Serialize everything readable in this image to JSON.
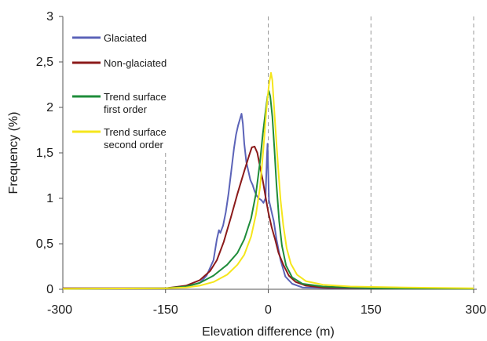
{
  "chart_data": {
    "type": "line",
    "title": "",
    "xlabel": "Elevation difference (m)",
    "ylabel": "Frequency (%)",
    "xlim": [
      -300,
      300
    ],
    "ylim": [
      0,
      3
    ],
    "x_ticks": [
      -300,
      -150,
      0,
      150,
      300
    ],
    "x_tick_labels": [
      "-300",
      "-150",
      "0",
      "150",
      "300"
    ],
    "y_ticks": [
      0,
      0.5,
      1,
      1.5,
      2,
      2.5,
      3
    ],
    "y_tick_labels": [
      "0",
      "0,5",
      "1",
      "1,5",
      "2",
      "2,5",
      "3"
    ],
    "vertical_reference_lines_at": [
      -150,
      0,
      150,
      300
    ],
    "grid": false,
    "legend_position": "top-left",
    "legend_lines": [
      [
        "Glaciated"
      ],
      [
        "Non-glaciated"
      ],
      [
        "Trend surface",
        "first order"
      ],
      [
        "Trend surface",
        "second order"
      ]
    ],
    "series": [
      {
        "name": "Glaciated",
        "color": "#5b63b8",
        "points": [
          [
            -300,
            0.01
          ],
          [
            -200,
            0.01
          ],
          [
            -150,
            0.01
          ],
          [
            -120,
            0.03
          ],
          [
            -100,
            0.07
          ],
          [
            -90,
            0.15
          ],
          [
            -80,
            0.32
          ],
          [
            -75,
            0.55
          ],
          [
            -72,
            0.65
          ],
          [
            -70,
            0.62
          ],
          [
            -66,
            0.7
          ],
          [
            -62,
            0.85
          ],
          [
            -58,
            1.05
          ],
          [
            -54,
            1.3
          ],
          [
            -50,
            1.55
          ],
          [
            -47,
            1.7
          ],
          [
            -44,
            1.8
          ],
          [
            -41,
            1.88
          ],
          [
            -39,
            1.93
          ],
          [
            -37,
            1.82
          ],
          [
            -35,
            1.6
          ],
          [
            -32,
            1.4
          ],
          [
            -29,
            1.3
          ],
          [
            -26,
            1.2
          ],
          [
            -23,
            1.15
          ],
          [
            -20,
            1.08
          ],
          [
            -17,
            1.03
          ],
          [
            -14,
            1.0
          ],
          [
            -10,
            0.98
          ],
          [
            -7,
            0.95
          ],
          [
            -4,
            1.0
          ],
          [
            -2,
            1.45
          ],
          [
            -1,
            1.6
          ],
          [
            1,
            0.98
          ],
          [
            4,
            0.88
          ],
          [
            8,
            0.75
          ],
          [
            12,
            0.55
          ],
          [
            18,
            0.32
          ],
          [
            25,
            0.14
          ],
          [
            35,
            0.06
          ],
          [
            50,
            0.02
          ],
          [
            100,
            0.01
          ],
          [
            300,
            0.005
          ]
        ]
      },
      {
        "name": "Non-glaciated",
        "color": "#8b1a1a",
        "points": [
          [
            -300,
            0.01
          ],
          [
            -150,
            0.01
          ],
          [
            -120,
            0.04
          ],
          [
            -100,
            0.1
          ],
          [
            -85,
            0.2
          ],
          [
            -75,
            0.32
          ],
          [
            -65,
            0.52
          ],
          [
            -55,
            0.78
          ],
          [
            -45,
            1.05
          ],
          [
            -35,
            1.3
          ],
          [
            -28,
            1.47
          ],
          [
            -24,
            1.56
          ],
          [
            -20,
            1.57
          ],
          [
            -16,
            1.5
          ],
          [
            -12,
            1.35
          ],
          [
            -8,
            1.2
          ],
          [
            -4,
            1.02
          ],
          [
            0,
            0.85
          ],
          [
            5,
            0.68
          ],
          [
            10,
            0.55
          ],
          [
            15,
            0.4
          ],
          [
            22,
            0.27
          ],
          [
            30,
            0.15
          ],
          [
            40,
            0.08
          ],
          [
            55,
            0.04
          ],
          [
            80,
            0.02
          ],
          [
            150,
            0.01
          ],
          [
            300,
            0.005
          ]
        ]
      },
      {
        "name": "Trend surface first order",
        "color": "#1e8c3a",
        "points": [
          [
            -300,
            0.005
          ],
          [
            -150,
            0.01
          ],
          [
            -120,
            0.03
          ],
          [
            -100,
            0.07
          ],
          [
            -80,
            0.15
          ],
          [
            -60,
            0.27
          ],
          [
            -45,
            0.4
          ],
          [
            -35,
            0.55
          ],
          [
            -25,
            0.78
          ],
          [
            -18,
            1.05
          ],
          [
            -12,
            1.4
          ],
          [
            -8,
            1.7
          ],
          [
            -4,
            1.95
          ],
          [
            -1,
            2.12
          ],
          [
            1,
            2.18
          ],
          [
            3,
            2.12
          ],
          [
            6,
            1.9
          ],
          [
            9,
            1.55
          ],
          [
            12,
            1.15
          ],
          [
            16,
            0.75
          ],
          [
            20,
            0.48
          ],
          [
            26,
            0.26
          ],
          [
            35,
            0.13
          ],
          [
            50,
            0.06
          ],
          [
            80,
            0.03
          ],
          [
            150,
            0.01
          ],
          [
            300,
            0.005
          ]
        ]
      },
      {
        "name": "Trend surface second order",
        "color": "#f5e61c",
        "points": [
          [
            -300,
            0.005
          ],
          [
            -150,
            0.01
          ],
          [
            -120,
            0.02
          ],
          [
            -100,
            0.04
          ],
          [
            -80,
            0.08
          ],
          [
            -60,
            0.16
          ],
          [
            -45,
            0.27
          ],
          [
            -35,
            0.38
          ],
          [
            -25,
            0.58
          ],
          [
            -18,
            0.82
          ],
          [
            -12,
            1.12
          ],
          [
            -7,
            1.55
          ],
          [
            -3,
            1.95
          ],
          [
            1,
            2.25
          ],
          [
            4,
            2.38
          ],
          [
            6,
            2.3
          ],
          [
            9,
            1.95
          ],
          [
            12,
            1.6
          ],
          [
            15,
            1.28
          ],
          [
            18,
            0.98
          ],
          [
            22,
            0.7
          ],
          [
            27,
            0.45
          ],
          [
            33,
            0.28
          ],
          [
            42,
            0.16
          ],
          [
            55,
            0.09
          ],
          [
            80,
            0.05
          ],
          [
            120,
            0.03
          ],
          [
            200,
            0.02
          ],
          [
            300,
            0.01
          ]
        ]
      }
    ]
  }
}
